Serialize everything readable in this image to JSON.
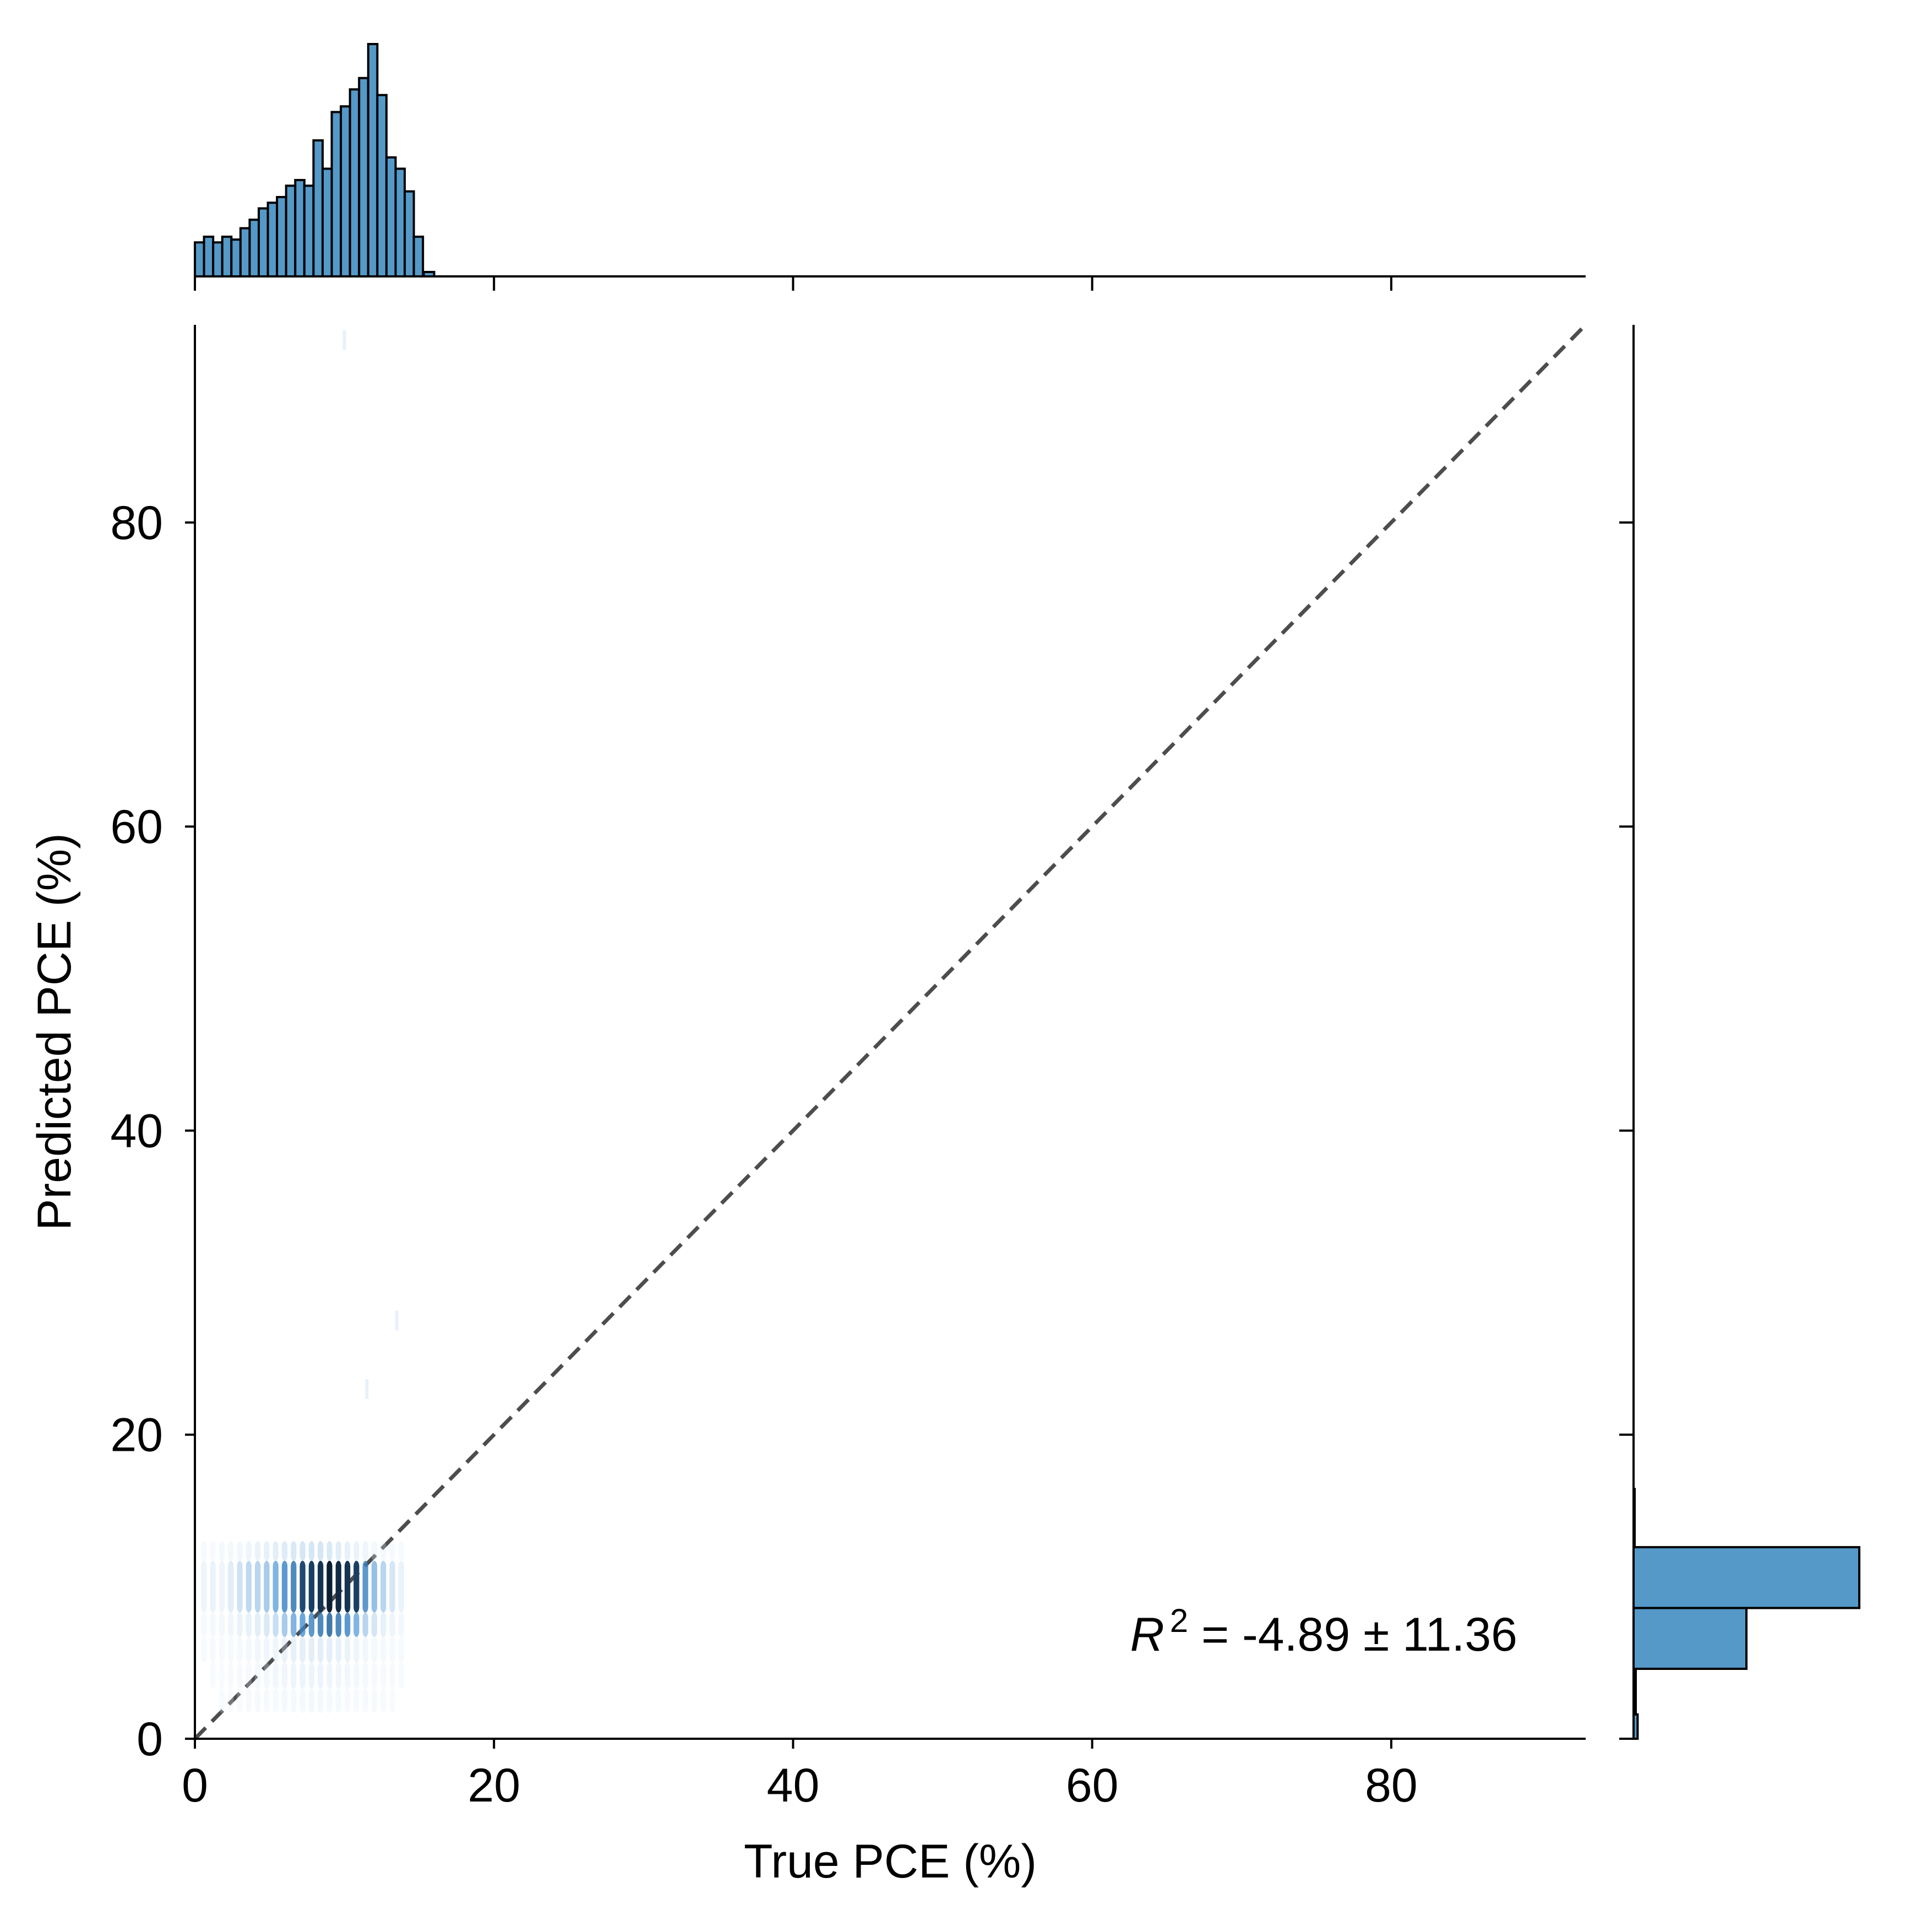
{
  "chart_data": {
    "type": "heatmap",
    "subtype": "joint-plot",
    "title": "",
    "xlabel": "True PCE (%)",
    "ylabel": "Predicted PCE (%)",
    "xlim": [
      0,
      93
    ],
    "ylim": [
      0,
      93
    ],
    "xticks": [
      0,
      20,
      40,
      60,
      80
    ],
    "yticks": [
      0,
      20,
      40,
      60,
      80
    ],
    "xtick_labels": [
      "0",
      "20",
      "40",
      "60",
      "80"
    ],
    "ytick_labels": [
      "0",
      "20",
      "40",
      "60",
      "80"
    ],
    "grid": false,
    "legend": "none",
    "annotation": {
      "symbol": "R",
      "superscript": "2",
      "text": " = -4.89 ± 11.36"
    },
    "reference_line": {
      "x": [
        0,
        93
      ],
      "y": [
        0,
        93
      ],
      "style": "dashed",
      "color": "#4d4d4d"
    },
    "colors": {
      "bars": "#5499c7",
      "edge": "#000000",
      "heat_low": "#e8f1fa",
      "heat_mid": "#3a8ad0",
      "heat_high": "#0b1f33"
    },
    "heatmap": {
      "x_bin_width": 0.6,
      "x_bins": [
        0.6,
        1.2,
        1.8,
        2.4,
        3.0,
        3.6,
        4.2,
        4.8,
        5.4,
        6.0,
        6.6,
        7.2,
        7.8,
        8.4,
        9.0,
        9.6,
        10.2,
        10.8,
        11.4,
        12.0,
        12.6,
        13.2,
        13.8
      ],
      "y_bins": [
        {
          "y0": 8.3,
          "y1": 11.7,
          "weights": [
            0.08,
            0.1,
            0.08,
            0.15,
            0.22,
            0.28,
            0.3,
            0.35,
            0.45,
            0.55,
            0.6,
            0.8,
            0.85,
            0.9,
            1.0,
            0.95,
            0.9,
            0.85,
            0.55,
            0.4,
            0.3,
            0.2,
            0.1
          ]
        },
        {
          "y0": 6.7,
          "y1": 8.3,
          "weights": [
            0.03,
            0.04,
            0.05,
            0.07,
            0.1,
            0.12,
            0.14,
            0.18,
            0.25,
            0.35,
            0.45,
            0.5,
            0.55,
            0.6,
            0.65,
            0.6,
            0.55,
            0.45,
            0.3,
            0.2,
            0.12,
            0.08,
            0.05
          ]
        },
        {
          "y0": 11.7,
          "y1": 13.0,
          "weights": [
            0.02,
            0.03,
            0.04,
            0.05,
            0.06,
            0.08,
            0.1,
            0.12,
            0.14,
            0.16,
            0.18,
            0.2,
            0.2,
            0.2,
            0.18,
            0.15,
            0.12,
            0.1,
            0.08,
            0.05,
            0.04,
            0.03,
            0.02
          ]
        },
        {
          "y0": 5.0,
          "y1": 6.7,
          "weights": [
            0.01,
            0.02,
            0.02,
            0.03,
            0.04,
            0.05,
            0.06,
            0.07,
            0.08,
            0.1,
            0.12,
            0.13,
            0.14,
            0.14,
            0.13,
            0.12,
            0.1,
            0.08,
            0.06,
            0.05,
            0.04,
            0.03,
            0.02
          ]
        },
        {
          "y0": 3.3,
          "y1": 5.0,
          "weights": [
            0.0,
            0.01,
            0.01,
            0.02,
            0.02,
            0.03,
            0.04,
            0.05,
            0.06,
            0.07,
            0.08,
            0.09,
            0.09,
            0.09,
            0.08,
            0.07,
            0.06,
            0.05,
            0.04,
            0.03,
            0.02,
            0.02,
            0.01
          ]
        },
        {
          "y0": 1.7,
          "y1": 3.3,
          "weights": [
            0.0,
            0.0,
            0.01,
            0.01,
            0.01,
            0.02,
            0.02,
            0.03,
            0.03,
            0.04,
            0.04,
            0.04,
            0.05,
            0.05,
            0.04,
            0.04,
            0.03,
            0.03,
            0.02,
            0.02,
            0.01,
            0.01,
            0.0
          ]
        }
      ],
      "outliers": [
        {
          "x": 10.0,
          "y": 92.0
        },
        {
          "x": 13.5,
          "y": 27.5
        },
        {
          "x": 11.5,
          "y": 23.0
        }
      ]
    },
    "x_marginal": {
      "bin_width": 0.61,
      "bin_starts": [
        0.0,
        0.61,
        1.22,
        1.83,
        2.44,
        3.05,
        3.66,
        4.27,
        4.88,
        5.49,
        6.1,
        6.71,
        7.32,
        7.93,
        8.54,
        9.15,
        9.76,
        10.37,
        10.98,
        11.59,
        12.2,
        12.81,
        13.42,
        14.03,
        14.64
      ],
      "counts": [
        12,
        14,
        12,
        14,
        13,
        17,
        20,
        24,
        26,
        28,
        32,
        34,
        32,
        48,
        38,
        58,
        60,
        66,
        70,
        82,
        64,
        42,
        38,
        30,
        14
      ]
    },
    "y_marginal": {
      "bins": [
        [
          0,
          1.6
        ],
        [
          1.6,
          4.6
        ],
        [
          4.6,
          8.6
        ],
        [
          8.6,
          12.6
        ]
      ],
      "counts": [
        18,
        2,
        500,
        1000
      ]
    }
  }
}
